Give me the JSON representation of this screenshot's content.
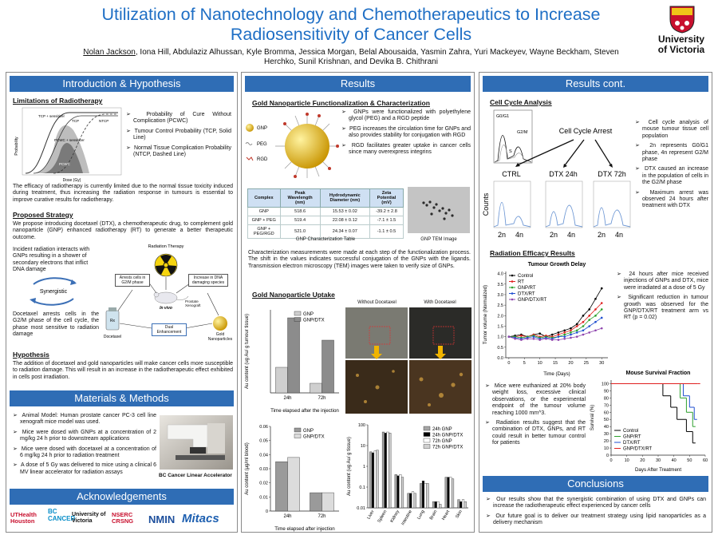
{
  "header": {
    "title": "Utilization of Nanotechnology and Chemotherapeutics to Increase Radiosensitivity of Cancer Cells",
    "presenter": "Nolan Jackson",
    "authors": ", Iona Hill, Abdulaziz Alhussan, Kyle Bromma, Jessica Morgan, Belal Abousaida, Yasmin Zahra, Yuri Mackeyev, Wayne Beckham, Steven Herchko, Sunil Krishnan, and Devika B. Chithrani",
    "logo": [
      "University",
      "of Victoria"
    ]
  },
  "intro": {
    "heading": "Introduction & Hypothesis",
    "limitations": {
      "heading": "Limitations of Radiotherapy",
      "figure": {
        "y_label": "Probability",
        "x_label": "Dose (Gy)",
        "labels": [
          "TCP + sensitizer",
          "TCP",
          "NTCP",
          "PCWC + sensitizer",
          "PCWC"
        ]
      },
      "bullets": [
        "Probability of Cure Without Complication (PCWC)",
        "Tumour Control Probability (TCP, Solid Line)",
        "Normal Tissue Complication Probability (NTCP, Dashed Line)"
      ],
      "text": "The efficacy of radiotherapy is currently limited due to the normal tissue toxicity induced during treatment, thus increasing the radiation response in tumours is essential to improve curative results for radiotherapy."
    },
    "strategy": {
      "heading": "Proposed Strategy",
      "text": "We propose introducing docetaxel (DTX), a chemotherapeutic drug, to complement gold nanoparticle (GNP) enhanced radiotherapy (RT) to generate a better therapeutic outcome.",
      "left_top": "Incident radiation interacts with GNPs resulting in a shower of secondary electrons that inflict DNA damage",
      "synergistic": "Synergistic",
      "left_bottom": "Docetaxel arrests cells in the G2/M phase of the cell cycle, the phase most sensitive to radiation damage",
      "diagram": {
        "radiation": "Radiation Therapy",
        "arrests": "Arrests cells in G2/M phase",
        "increase": "Increase in DNA damaging species",
        "in_vivo": "In vivo",
        "prostate": "Prostate Xenograft",
        "dual": "Dual Enhancement",
        "rx": "Rx",
        "docetaxel": "Docetaxel",
        "gold": "Gold Nanoparticles"
      }
    },
    "hypothesis": {
      "heading": "Hypothesis",
      "text": "The addition of docetaxel and gold nanoparticles will make cancer cells more susceptible to radiation damage. This will result in an increase in the radiotherapeutic effect exhibited in cells post irradiation."
    }
  },
  "methods": {
    "heading": "Materials & Methods",
    "bullets": [
      "Animal Model: Human prostate cancer PC-3 cell line xenograft mice model was used.",
      "Mice were dosed with GNPs at a concentration of 2 mg/kg 24 h prior to downstream applications",
      "Mice were dosed with docetaxel at a concentration of 6 mg/kg 24 h prior to radiation treatment",
      "A dose of 5 Gy was delivered to mice using a clinical 6 MV linear accelerator for radiation assays"
    ],
    "caption": "BC Cancer Linear Accelerator"
  },
  "acknowledgements": {
    "heading": "Acknowledgements",
    "logos": [
      "UTHealth Houston",
      "BC CANCER",
      "University of Victoria",
      "NSERC CRSNG",
      "NMIN",
      "Mitacs"
    ]
  },
  "results": {
    "heading": "Results",
    "functionalization": {
      "heading": "Gold Nanoparticle Functionalization & Characterization",
      "legend": [
        "GNP",
        "PEG",
        "RGD"
      ],
      "bullets": [
        "GNPs were functionalized with polyethylene glycol (PEG) and a RGD peptide",
        "PEG increases the circulation time for GNPs and also provides stability for conjugation with RGD",
        "RGD facilitates greater uptake in cancer cells since many overexpress integrins"
      ],
      "table": {
        "header": [
          "Complex",
          "Peak Wavelength (nm)",
          "Hydrodynamic Diameter (nm)",
          "Zeta Potential (mV)"
        ],
        "rows": [
          [
            "GNP",
            "518.6",
            "15.53 ± 0.02",
            "-39.2 ± 2.8"
          ],
          [
            "GNP + PEG",
            "519.4",
            "22.08 ± 0.12",
            "-7.1 ± 1.5"
          ],
          [
            "GNP + PEG/RGD",
            "521.0",
            "24.34 ± 0.07",
            "-1.1 ± 0.5"
          ]
        ]
      },
      "table_caption": "GNP Characterization Table",
      "tem_caption": "GNP TEM Image",
      "text": "Characterization measurements were made at each step of the functionalization process. The shift in the values indicates successful conjugation of the GNPs with the ligands. Transmission electron microscopy (TEM) images were taken to verify size of GNPs."
    },
    "uptake": {
      "heading": "Gold Nanoparticle Uptake",
      "images": [
        "Without Docetaxel",
        "With Docetaxel"
      ],
      "tumour_chart": {
        "type": "bar",
        "categories": [
          "24h",
          "72h"
        ],
        "series": [
          {
            "name": "GNP",
            "color": "#cfcfcf",
            "values": [
              1.6,
              0.6
            ]
          },
          {
            "name": "GNP/DTX",
            "color": "#8c8c8c",
            "values": [
              4.7,
              3.3
            ]
          }
        ],
        "ylim": [
          0,
          5.2
        ],
        "y_label": "Au content (ug Au/ g tumour tissue)",
        "x_label": "Time elapsed after the injection",
        "legend": "top-right"
      },
      "blood_chart": {
        "type": "bar",
        "categories": [
          "24h",
          "72h"
        ],
        "series": [
          {
            "name": "GNP",
            "color": "#9a9a9a",
            "values": [
              0.035,
              0.013
            ]
          },
          {
            "name": "GNP/DTX",
            "color": "#dcdcdc",
            "values": [
              0.038,
              0.013
            ]
          }
        ],
        "ylim": [
          0,
          0.06
        ],
        "yticks": [
          0,
          0.01,
          0.02,
          0.03,
          0.04,
          0.05,
          0.06
        ],
        "y_label": "Au content (µg/ml blood)",
        "x_label": "Time elapsed after injection",
        "legend": "top-right"
      },
      "organ_chart": {
        "type": "bar",
        "log": true,
        "categories": [
          "Liver",
          "Spleen",
          "Kidney",
          "Intestine",
          "Lung",
          "Brain",
          "Heart",
          "Skin"
        ],
        "series": [
          {
            "name": "24h GNP",
            "color": "#a6a6a6",
            "values": [
              5,
              45,
              0.4,
              0.05,
              0.15,
              0.02,
              0.3,
              0.025
            ]
          },
          {
            "name": "24h GNP/DTX",
            "color": "#000000",
            "values": [
              4.5,
              40,
              0.35,
              0.05,
              0.2,
              0.02,
              0.3,
              0.02
            ]
          },
          {
            "name": "72h GNP",
            "color": "#ffffff",
            "values": [
              5.5,
              45,
              0.4,
              0.06,
              0.15,
              0.02,
              0.3,
              0.025
            ]
          },
          {
            "name": "72h GNP/DTX",
            "color": "#d0d0d0",
            "values": [
              6,
              40,
              0.3,
              0.05,
              0.15,
              0.015,
              0.25,
              0.02
            ]
          }
        ],
        "ylim": [
          0.01,
          100
        ],
        "yticks": [
          0.01,
          0.1,
          1,
          10,
          100
        ],
        "y_label": "Au content (ug Au/ g tissue)",
        "legend": "top-right"
      }
    }
  },
  "results_cont": {
    "heading": "Results cont.",
    "cell_cycle": {
      "heading": "Cell Cycle Analysis",
      "arrest": "Cell Cycle Arrest",
      "phases": [
        "G0/G1",
        "S",
        "G2/M"
      ],
      "panels": [
        "CTRL",
        "DTX 24h",
        "DTX 72h"
      ],
      "y_label": "Counts",
      "ploidy": [
        "2n",
        "4n"
      ],
      "bullets": [
        "Cell cycle analysis of mouse tumour tissue cell population",
        "2n represents G0/G1 phase, 4n represent G2/M phase",
        "DTX caused an increase in the population of cells in the G2/M phase",
        "Maximum arrest was observed 24 hours after treatment with DTX"
      ]
    },
    "efficacy": {
      "heading": "Radiation Efficacy Results",
      "growth_chart": {
        "type": "line",
        "title": "Tumour Growth Delay",
        "x": [
          0,
          2,
          4,
          6,
          8,
          10,
          12,
          14,
          16,
          18,
          20,
          22,
          24,
          26,
          28,
          30
        ],
        "series": [
          {
            "name": "Control",
            "color": "#000000",
            "values": [
              1,
              1.05,
              1.1,
              1.0,
              1.1,
              1.15,
              1.0,
              1.1,
              1.2,
              1.3,
              1.4,
              1.6,
              2.0,
              2.3,
              2.8,
              3.3
            ]
          },
          {
            "name": "RT",
            "color": "#e02020",
            "values": [
              1,
              1.0,
              1.05,
              1.0,
              1.1,
              1.0,
              1.05,
              1.0,
              1.1,
              1.2,
              1.3,
              1.5,
              1.7,
              2.0,
              2.3,
              2.6
            ]
          },
          {
            "name": "GNP/RT",
            "color": "#2ca02c",
            "values": [
              1,
              1.0,
              0.95,
              1.0,
              1.05,
              0.95,
              1.0,
              0.95,
              1.0,
              1.1,
              1.2,
              1.3,
              1.5,
              1.8,
              2.0,
              2.3
            ]
          },
          {
            "name": "DTX/RT",
            "color": "#1f4fd0",
            "values": [
              1,
              0.95,
              0.9,
              0.95,
              1.0,
              0.9,
              0.95,
              0.9,
              1.0,
              1.0,
              1.1,
              1.2,
              1.3,
              1.5,
              1.7,
              1.9
            ]
          },
          {
            "name": "GNP/DTX/RT",
            "color": "#8e44ad",
            "values": [
              1,
              0.9,
              0.85,
              0.9,
              0.9,
              0.85,
              0.9,
              0.85,
              0.85,
              0.9,
              0.95,
              1.0,
              1.1,
              1.2,
              1.3,
              1.4
            ]
          }
        ],
        "xlim": [
          -1,
          32
        ],
        "xticks": [
          0,
          5,
          10,
          15,
          20,
          25,
          30
        ],
        "ylim": [
          0,
          4.1
        ],
        "yticks": [
          {
            "value": 0,
            "label": "0.0"
          },
          {
            "value": 0.5,
            "label": "0.5"
          },
          {
            "value": 1,
            "label": "1.0"
          },
          {
            "value": 1.5,
            "label": "1.5"
          },
          {
            "value": 2,
            "label": "2.0"
          },
          {
            "value": 2.5,
            "label": "2.5"
          },
          {
            "value": 3,
            "label": "3.0"
          },
          {
            "value": 3.5,
            "label": "3.5"
          },
          {
            "value": 4,
            "label": "4.0"
          }
        ],
        "y_label": "Tumor volume (Normalized)",
        "x_label": "Time (Days)",
        "legend": "top-left"
      },
      "bullets": [
        "24 hours after mice received injections of GNPs and DTX, mice were irradiated at a dose of 5 Gy",
        "Significant reduction in tumour growth was observed for the GNP/DTX/RT treatment arm vs RT (p = 0.02)"
      ],
      "bullets2": [
        "Mice were euthanized at 20% body weight loss, excessive clinical observations, or the experimental endpoint of the tumour volume reaching 1000 mm^3.",
        "Radiation results suggest that the combination of DTX, GNPs, and RT could result in better tumour control for patients"
      ],
      "survival_chart": {
        "type": "step",
        "title": "Mouse Survival Fraction",
        "series": [
          {
            "name": "Control",
            "color": "#000000",
            "x": [
              0,
              33,
              38,
              42,
              48,
              52
            ],
            "values": [
              100,
              83,
              67,
              50,
              33,
              17
            ]
          },
          {
            "name": "GNP/RT",
            "color": "#2ca02c",
            "x": [
              0,
              44,
              48,
              52
            ],
            "values": [
              100,
              80,
              60,
              40
            ]
          },
          {
            "name": "DTX/RT",
            "color": "#1f4fd0",
            "x": [
              0,
              46,
              50,
              53
            ],
            "values": [
              100,
              83,
              67,
              50
            ]
          },
          {
            "name": "GNP/DTX/RT",
            "color": "#e02020",
            "x": [
              0,
              55
            ],
            "values": [
              100,
              100
            ]
          }
        ],
        "xlim": [
          0,
          60
        ],
        "xticks": [
          0,
          10,
          20,
          30,
          40,
          50,
          60
        ],
        "ylim": [
          0,
          105
        ],
        "yticks": [
          0,
          10,
          20,
          30,
          40,
          50,
          60,
          70,
          80,
          90,
          100
        ],
        "y_label": "Survival (%)",
        "x_label": "Days After Treatment",
        "legend": "bottom-left"
      }
    }
  },
  "conclusions": {
    "heading": "Conclusions",
    "bullets": [
      "Our results show that the synergistic combination of using DTX and GNPs can increase the radiotherapeutic effect experienced by cancer cells",
      "Our future goal is to deliver our treatment strategy using lipid nanoparticles as a delivery mechanism"
    ]
  }
}
